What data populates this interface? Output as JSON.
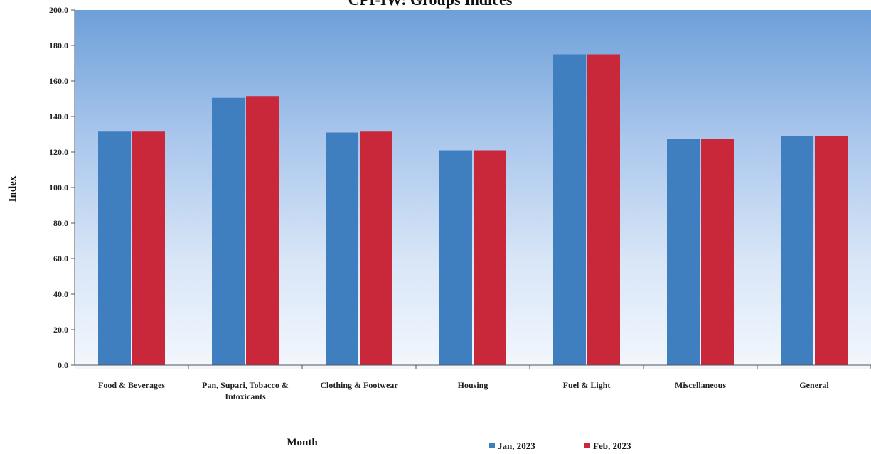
{
  "chart_data": {
    "type": "bar",
    "title": "CPI-IW: Groups Indices",
    "xlabel": "Month",
    "ylabel": "Index",
    "ylim": [
      0,
      200
    ],
    "yticks": [
      "0.0",
      "20.0",
      "40.0",
      "60.0",
      "80.0",
      "100.0",
      "120.0",
      "140.0",
      "160.0",
      "180.0",
      "200.0"
    ],
    "categories": [
      [
        "Food & Beverages"
      ],
      [
        "Pan, Supari, Tobacco &",
        "Intoxicants"
      ],
      [
        "Clothing & Footwear"
      ],
      [
        "Housing"
      ],
      [
        "Fuel & Light"
      ],
      [
        "Miscellaneous"
      ],
      [
        "General"
      ]
    ],
    "series": [
      {
        "name": "Jan, 2023",
        "color": "#3f7fc0",
        "values": [
          131.5,
          150.5,
          131.0,
          121.0,
          175.0,
          127.5,
          129.0
        ]
      },
      {
        "name": "Feb, 2023",
        "color": "#c8283a",
        "values": [
          131.5,
          151.5,
          131.5,
          121.0,
          175.0,
          127.5,
          129.0
        ]
      }
    ],
    "legend": "bottom-right",
    "grid": false
  }
}
